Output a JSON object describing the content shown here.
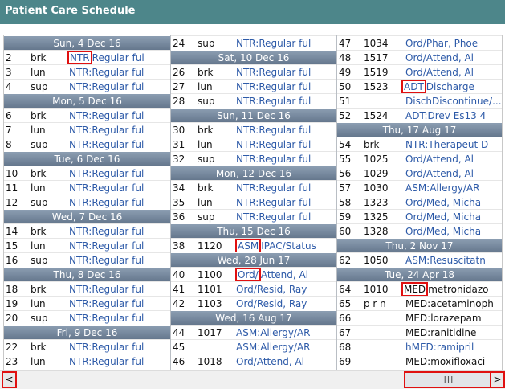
{
  "title": "Patient Care Schedule",
  "scrollbar": {
    "left_arrow": "<",
    "right_arrow": ">",
    "thumb_grip": "III"
  },
  "columns": [
    {
      "items": [
        {
          "type": "header",
          "text": "Sun, 4 Dec 16"
        },
        {
          "type": "row",
          "num": "2",
          "code": "brk",
          "prefix": "NTR",
          "prefix_marked": true,
          "rest": "Regular ful"
        },
        {
          "type": "row",
          "num": "3",
          "code": "lun",
          "text": "NTR:Regular ful"
        },
        {
          "type": "row",
          "num": "4",
          "code": "sup",
          "text": "NTR:Regular ful"
        },
        {
          "type": "header",
          "text": "Mon, 5 Dec 16"
        },
        {
          "type": "row",
          "num": "6",
          "code": "brk",
          "text": "NTR:Regular ful"
        },
        {
          "type": "row",
          "num": "7",
          "code": "lun",
          "text": "NTR:Regular ful"
        },
        {
          "type": "row",
          "num": "8",
          "code": "sup",
          "text": "NTR:Regular ful"
        },
        {
          "type": "header",
          "text": "Tue, 6 Dec 16"
        },
        {
          "type": "row",
          "num": "10",
          "code": "brk",
          "text": "NTR:Regular ful"
        },
        {
          "type": "row",
          "num": "11",
          "code": "lun",
          "text": "NTR:Regular ful"
        },
        {
          "type": "row",
          "num": "12",
          "code": "sup",
          "text": "NTR:Regular ful"
        },
        {
          "type": "header",
          "text": "Wed, 7 Dec 16"
        },
        {
          "type": "row",
          "num": "14",
          "code": "brk",
          "text": "NTR:Regular ful"
        },
        {
          "type": "row",
          "num": "15",
          "code": "lun",
          "text": "NTR:Regular ful"
        },
        {
          "type": "row",
          "num": "16",
          "code": "sup",
          "text": "NTR:Regular ful"
        },
        {
          "type": "header",
          "text": "Thu, 8 Dec 16"
        },
        {
          "type": "row",
          "num": "18",
          "code": "brk",
          "text": "NTR:Regular ful"
        },
        {
          "type": "row",
          "num": "19",
          "code": "lun",
          "text": "NTR:Regular ful"
        },
        {
          "type": "row",
          "num": "20",
          "code": "sup",
          "text": "NTR:Regular ful"
        },
        {
          "type": "header",
          "text": "Fri, 9 Dec 16"
        },
        {
          "type": "row",
          "num": "22",
          "code": "brk",
          "text": "NTR:Regular ful"
        },
        {
          "type": "row",
          "num": "23",
          "code": "lun",
          "text": "NTR:Regular ful"
        }
      ]
    },
    {
      "items": [
        {
          "type": "row",
          "num": "24",
          "code": "sup",
          "text": "NTR:Regular ful"
        },
        {
          "type": "header",
          "text": "Sat, 10 Dec 16"
        },
        {
          "type": "row",
          "num": "26",
          "code": "brk",
          "text": "NTR:Regular ful"
        },
        {
          "type": "row",
          "num": "27",
          "code": "lun",
          "text": "NTR:Regular ful"
        },
        {
          "type": "row",
          "num": "28",
          "code": "sup",
          "text": "NTR:Regular ful"
        },
        {
          "type": "header",
          "text": "Sun, 11 Dec 16"
        },
        {
          "type": "row",
          "num": "30",
          "code": "brk",
          "text": "NTR:Regular ful"
        },
        {
          "type": "row",
          "num": "31",
          "code": "lun",
          "text": "NTR:Regular ful"
        },
        {
          "type": "row",
          "num": "32",
          "code": "sup",
          "text": "NTR:Regular ful"
        },
        {
          "type": "header",
          "text": "Mon, 12 Dec 16"
        },
        {
          "type": "row",
          "num": "34",
          "code": "brk",
          "text": "NTR:Regular ful"
        },
        {
          "type": "row",
          "num": "35",
          "code": "lun",
          "text": "NTR:Regular ful"
        },
        {
          "type": "row",
          "num": "36",
          "code": "sup",
          "text": "NTR:Regular ful"
        },
        {
          "type": "header",
          "text": "Thu, 15 Dec 16"
        },
        {
          "type": "row",
          "num": "38",
          "code": "1120",
          "prefix": "ASM",
          "prefix_marked": true,
          "rest": "IPAC/Status"
        },
        {
          "type": "header",
          "text": "Wed, 28 Jun 17"
        },
        {
          "type": "row",
          "num": "40",
          "code": "1100",
          "prefix": "Ord/",
          "prefix_marked": true,
          "rest": "Attend, Al"
        },
        {
          "type": "row",
          "num": "41",
          "code": "1101",
          "text": "Ord/Resid, Ray"
        },
        {
          "type": "row",
          "num": "42",
          "code": "1103",
          "text": "Ord/Resid, Ray"
        },
        {
          "type": "header",
          "text": "Wed, 16 Aug 17"
        },
        {
          "type": "row",
          "num": "44",
          "code": "1017",
          "text": "ASM:Allergy/AR"
        },
        {
          "type": "row",
          "num": "45",
          "code": "",
          "text": "ASM:Allergy/AR"
        },
        {
          "type": "row",
          "num": "46",
          "code": "1018",
          "text": "Ord/Attend, Al"
        }
      ]
    },
    {
      "items": [
        {
          "type": "row",
          "num": "47",
          "code": "1034",
          "text": "Ord/Phar, Phoe"
        },
        {
          "type": "row",
          "num": "48",
          "code": "1517",
          "text": "Ord/Attend, Al"
        },
        {
          "type": "row",
          "num": "49",
          "code": "1519",
          "text": "Ord/Attend, Al"
        },
        {
          "type": "row",
          "num": "50",
          "code": "1523",
          "prefix": "ADT",
          "prefix_marked": true,
          "rest": "Discharge"
        },
        {
          "type": "row",
          "num": "51",
          "code": "",
          "text": "DischDiscontinue/..."
        },
        {
          "type": "row",
          "num": "52",
          "code": "1524",
          "text": "ADT:Drev Es13 4"
        },
        {
          "type": "header",
          "text": "Thu, 17 Aug 17"
        },
        {
          "type": "row",
          "num": "54",
          "code": "brk",
          "text": "NTR:Therapeut D"
        },
        {
          "type": "row",
          "num": "55",
          "code": "1025",
          "text": "Ord/Attend, Al"
        },
        {
          "type": "row",
          "num": "56",
          "code": "1029",
          "text": "Ord/Attend, Al"
        },
        {
          "type": "row",
          "num": "57",
          "code": "1030",
          "text": "ASM:Allergy/AR"
        },
        {
          "type": "row",
          "num": "58",
          "code": "1323",
          "text": "Ord/Med, Micha"
        },
        {
          "type": "row",
          "num": "59",
          "code": "1325",
          "text": "Ord/Med, Micha"
        },
        {
          "type": "row",
          "num": "60",
          "code": "1328",
          "text": "Ord/Med, Micha"
        },
        {
          "type": "header",
          "text": "Thu, 2 Nov 17"
        },
        {
          "type": "row",
          "num": "62",
          "code": "1050",
          "text": "ASM:Resuscitatn"
        },
        {
          "type": "header",
          "text": "Tue, 24 Apr 18"
        },
        {
          "type": "row",
          "num": "64",
          "code": "1010",
          "prefix": "MED",
          "prefix_marked": true,
          "rest": "metronidazo",
          "plain": true
        },
        {
          "type": "row",
          "num": "65",
          "code": "p r n",
          "text": "MED:acetaminoph",
          "plain": true
        },
        {
          "type": "row",
          "num": "66",
          "code": "",
          "text": "MED:lorazepam",
          "plain": true
        },
        {
          "type": "row",
          "num": "67",
          "code": "",
          "text": "MED:ranitidine",
          "plain": true
        },
        {
          "type": "row",
          "num": "68",
          "code": "",
          "text": "hMED:ramipril",
          "plain": false
        },
        {
          "type": "row",
          "num": "69",
          "code": "",
          "text": "MED:moxifloxaci",
          "plain": true
        }
      ]
    }
  ]
}
